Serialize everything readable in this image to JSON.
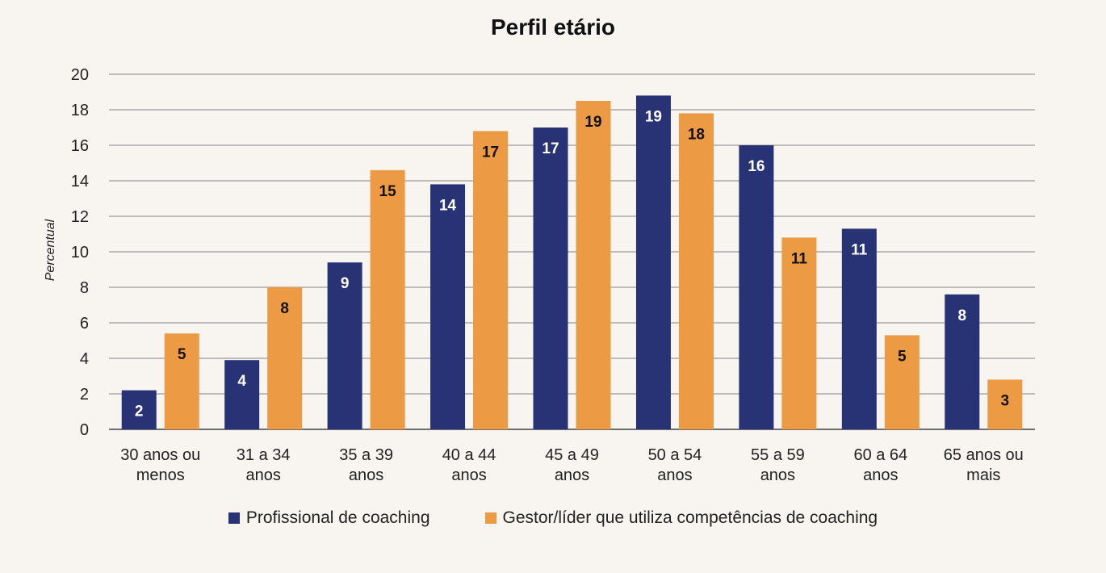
{
  "chart_data": {
    "type": "bar",
    "title": "Perfil etário",
    "ylabel": "Percentual",
    "xlabel": "",
    "ylim": [
      0,
      20
    ],
    "yticks": [
      0,
      2,
      4,
      6,
      8,
      10,
      12,
      14,
      16,
      18,
      20
    ],
    "grid": true,
    "legend_position": "bottom",
    "categories": [
      [
        "30 anos ou",
        "menos"
      ],
      [
        "31 a 34",
        "anos"
      ],
      [
        "35 a 39",
        "anos"
      ],
      [
        "40 a 44",
        "anos"
      ],
      [
        "45 a 49",
        "anos"
      ],
      [
        "50 a 54",
        "anos"
      ],
      [
        "55 a 59",
        "anos"
      ],
      [
        "60 a 64",
        "anos"
      ],
      [
        "65 anos ou",
        "mais"
      ]
    ],
    "series": [
      {
        "name": "Profissional de coaching",
        "color": "#283375",
        "label_color": "#ffffff",
        "values": [
          2.2,
          3.9,
          9.4,
          13.8,
          17.0,
          18.8,
          16.0,
          11.3,
          7.6
        ],
        "labels": [
          "2",
          "4",
          "9",
          "14",
          "17",
          "19",
          "16",
          "11",
          "8"
        ]
      },
      {
        "name": "Gestor/líder que utiliza competências de coaching",
        "color": "#ec9a43",
        "label_color": "#111111",
        "values": [
          5.4,
          8.0,
          14.6,
          16.8,
          18.5,
          17.8,
          10.8,
          5.3,
          2.8
        ],
        "labels": [
          "5",
          "8",
          "15",
          "17",
          "19",
          "18",
          "11",
          "5",
          "3"
        ]
      }
    ]
  }
}
